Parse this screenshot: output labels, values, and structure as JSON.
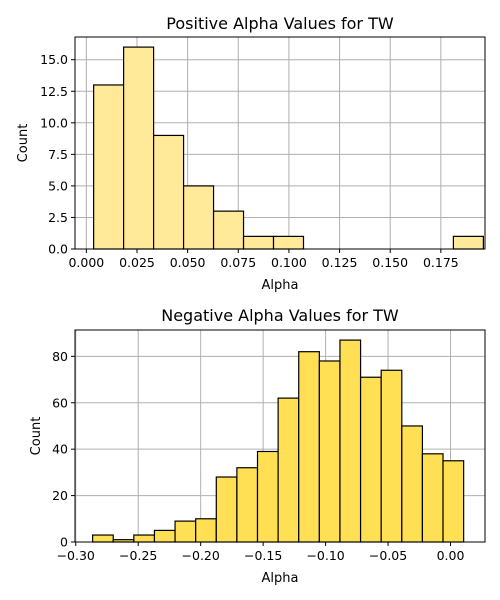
{
  "chart_data": [
    {
      "type": "bar",
      "title": "Positive Alpha Values for TW",
      "xlabel": "Alpha",
      "ylabel": "Count",
      "xlim": [
        -0.0056,
        0.1968
      ],
      "ylim": [
        0,
        16.8
      ],
      "grid": true,
      "color": "#ffea99",
      "xticks": [
        0.0,
        0.025,
        0.05,
        0.075,
        0.1,
        0.125,
        0.15,
        0.175
      ],
      "xtick_labels": [
        "0.000",
        "0.025",
        "0.050",
        "0.075",
        "0.100",
        "0.125",
        "0.150",
        "0.175"
      ],
      "yticks": [
        0.0,
        2.5,
        5.0,
        7.5,
        10.0,
        12.5,
        15.0
      ],
      "ytick_labels": [
        "0.0",
        "2.5",
        "5.0",
        "7.5",
        "10.0",
        "12.5",
        "15.0"
      ],
      "bins": [
        {
          "x0": 0.0036,
          "x1": 0.0184,
          "count": 13
        },
        {
          "x0": 0.0184,
          "x1": 0.0332,
          "count": 16
        },
        {
          "x0": 0.0332,
          "x1": 0.048,
          "count": 9
        },
        {
          "x0": 0.048,
          "x1": 0.0628,
          "count": 5
        },
        {
          "x0": 0.0628,
          "x1": 0.0776,
          "count": 3
        },
        {
          "x0": 0.0776,
          "x1": 0.0924,
          "count": 1
        },
        {
          "x0": 0.0924,
          "x1": 0.1072,
          "count": 1
        },
        {
          "x0": 0.1072,
          "x1": 0.122,
          "count": 0
        },
        {
          "x0": 0.122,
          "x1": 0.1368,
          "count": 0
        },
        {
          "x0": 0.1368,
          "x1": 0.1516,
          "count": 0
        },
        {
          "x0": 0.1516,
          "x1": 0.1664,
          "count": 0
        },
        {
          "x0": 0.1664,
          "x1": 0.1812,
          "count": 0
        },
        {
          "x0": 0.1812,
          "x1": 0.196,
          "count": 1
        }
      ]
    },
    {
      "type": "bar",
      "title": "Negative Alpha Values for TW",
      "xlabel": "Alpha",
      "ylabel": "Count",
      "xlim": [
        -0.3006,
        0.0276
      ],
      "ylim": [
        0,
        91.35
      ],
      "grid": true,
      "color": "#ffe054",
      "xticks": [
        -0.3,
        -0.25,
        -0.2,
        -0.15,
        -0.1,
        -0.05,
        0.0
      ],
      "xtick_labels": [
        "−0.30",
        "−0.25",
        "−0.20",
        "−0.15",
        "−0.10",
        "−0.05",
        "0.00"
      ],
      "yticks": [
        0,
        20,
        40,
        60,
        80
      ],
      "ytick_labels": [
        "0",
        "20",
        "40",
        "60",
        "80"
      ],
      "bins": [
        {
          "x0": -0.2865,
          "x1": -0.27,
          "count": 3
        },
        {
          "x0": -0.27,
          "x1": -0.2535,
          "count": 1
        },
        {
          "x0": -0.2535,
          "x1": -0.237,
          "count": 3
        },
        {
          "x0": -0.237,
          "x1": -0.2205,
          "count": 5
        },
        {
          "x0": -0.2205,
          "x1": -0.204,
          "count": 9
        },
        {
          "x0": -0.204,
          "x1": -0.1875,
          "count": 10
        },
        {
          "x0": -0.1875,
          "x1": -0.171,
          "count": 28
        },
        {
          "x0": -0.171,
          "x1": -0.1545,
          "count": 32
        },
        {
          "x0": -0.1545,
          "x1": -0.138,
          "count": 39
        },
        {
          "x0": -0.138,
          "x1": -0.1215,
          "count": 62
        },
        {
          "x0": -0.1215,
          "x1": -0.105,
          "count": 82
        },
        {
          "x0": -0.105,
          "x1": -0.0885,
          "count": 78
        },
        {
          "x0": -0.0885,
          "x1": -0.072,
          "count": 87
        },
        {
          "x0": -0.072,
          "x1": -0.0555,
          "count": 71
        },
        {
          "x0": -0.0555,
          "x1": -0.039,
          "count": 74
        },
        {
          "x0": -0.039,
          "x1": -0.0225,
          "count": 50
        },
        {
          "x0": -0.0225,
          "x1": -0.006,
          "count": 38
        },
        {
          "x0": -0.006,
          "x1": 0.0105,
          "count": 35
        }
      ]
    }
  ]
}
